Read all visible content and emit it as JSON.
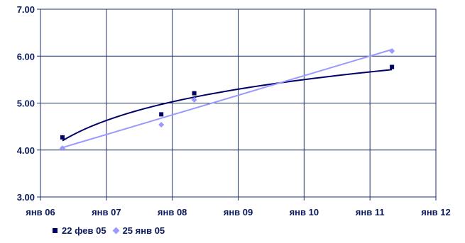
{
  "chart_data": {
    "type": "scatter",
    "title": "",
    "xlabel": "",
    "ylabel": "",
    "x_ticks": [
      "янв 06",
      "янв 07",
      "янв 08",
      "янв 09",
      "янв 10",
      "янв 11",
      "янв 12"
    ],
    "y_ticks": [
      "3.00",
      "4.00",
      "5.00",
      "6.00",
      "7.00"
    ],
    "ylim": [
      3,
      7
    ],
    "xlim": [
      "2006-01",
      "2012-01"
    ],
    "grid": true,
    "legend_position": "bottom-left",
    "series": [
      {
        "name": "22 фев 05",
        "marker": "square",
        "color": "#000066",
        "trendline": "logarithmic",
        "points": [
          {
            "x": "2006-05",
            "y": 4.27
          },
          {
            "x": "2007-11",
            "y": 4.76
          },
          {
            "x": "2008-05",
            "y": 5.21
          },
          {
            "x": "2011-05",
            "y": 5.77
          }
        ]
      },
      {
        "name": "25 янв 05",
        "marker": "diamond",
        "color": "#9999ff",
        "trendline": "linear",
        "points": [
          {
            "x": "2006-05",
            "y": 4.04
          },
          {
            "x": "2007-11",
            "y": 4.54
          },
          {
            "x": "2008-05",
            "y": 5.07
          },
          {
            "x": "2011-05",
            "y": 6.11
          }
        ]
      }
    ]
  }
}
